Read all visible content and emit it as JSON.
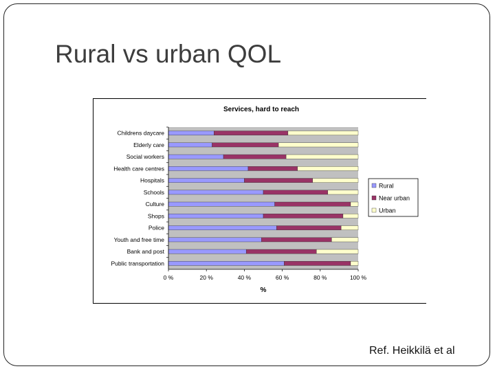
{
  "slide": {
    "title": "Rural vs urban QOL",
    "reference": "Ref. Heikkilä et al"
  },
  "chart_data": {
    "type": "bar",
    "orientation": "horizontal",
    "stacked": "percent",
    "title": "Services, hard to reach",
    "xlabel": "%",
    "ylabel": "",
    "xlim": [
      0,
      100
    ],
    "x_ticks": [
      "0 %",
      "20 %",
      "40 %",
      "60 %",
      "80 %",
      "100 %"
    ],
    "legend_position": "right",
    "grid": false,
    "categories": [
      "Childrens daycare",
      "Elderly care",
      "Social workers",
      "Health care centres",
      "Hospitals",
      "Schools",
      "Culture",
      "Shops",
      "Police",
      "Youth and free time",
      "Bank and post",
      "Public transportation"
    ],
    "series": [
      {
        "name": "Rural",
        "color": "#9999ff",
        "values": [
          24,
          23,
          29,
          42,
          40,
          50,
          56,
          50,
          57,
          49,
          41,
          61
        ]
      },
      {
        "name": "Near urban",
        "color": "#993366",
        "values": [
          39,
          35,
          33,
          26,
          36,
          34,
          40,
          42,
          34,
          37,
          37,
          35
        ]
      },
      {
        "name": "Urban",
        "color": "#ffffcc",
        "values": [
          37,
          42,
          38,
          32,
          24,
          16,
          4,
          8,
          9,
          14,
          22,
          4
        ]
      }
    ],
    "plot_background": "#c0c0c0"
  }
}
